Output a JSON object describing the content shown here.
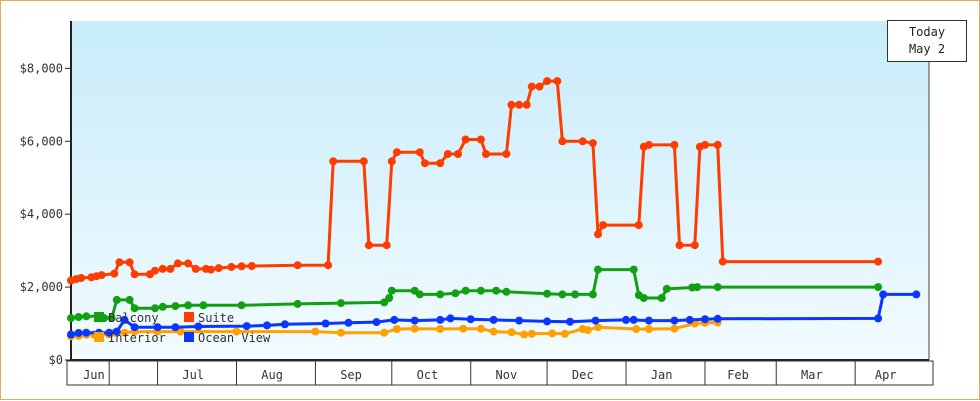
{
  "chart_data": {
    "type": "line",
    "title": "",
    "xlabel": "",
    "ylabel": "",
    "ylim": [
      0,
      9300
    ],
    "yticks": [
      {
        "value": 0,
        "label": "$0"
      },
      {
        "value": 2000,
        "label": "$2,000"
      },
      {
        "value": 4000,
        "label": "$4,000"
      },
      {
        "value": 6000,
        "label": "$6,000"
      },
      {
        "value": 8000,
        "label": "$8,000"
      }
    ],
    "xlim": [
      "2010-05-28",
      "2011-04-30"
    ],
    "month_labels": [
      {
        "label": "Jun",
        "date": "2010-06-06"
      },
      {
        "label": "Jul",
        "date": "2010-07-15"
      },
      {
        "label": "Aug",
        "date": "2010-08-15"
      },
      {
        "label": "Sep",
        "date": "2010-09-15"
      },
      {
        "label": "Oct",
        "date": "2010-10-15"
      },
      {
        "label": "Nov",
        "date": "2010-11-15"
      },
      {
        "label": "Dec",
        "date": "2010-12-15"
      },
      {
        "label": "Jan",
        "date": "2011-01-15"
      },
      {
        "label": "Feb",
        "date": "2011-02-14"
      },
      {
        "label": "Mar",
        "date": "2011-03-15"
      },
      {
        "label": "Apr",
        "date": "2011-04-13"
      }
    ],
    "month_dividers": [
      "2010-06-12",
      "2010-07-01",
      "2010-08-01",
      "2010-09-01",
      "2010-10-01",
      "2010-11-01",
      "2010-12-01",
      "2011-01-01",
      "2011-02-01",
      "2011-03-01",
      "2011-04-01"
    ],
    "legend_position": "bottom-left",
    "colors": {
      "plot_bg_top": "#c8ecfa",
      "plot_bg_bottom": "#f2fbff"
    },
    "series": [
      {
        "name": "Suite",
        "color": "#ff3c00",
        "points": [
          [
            "2010-05-28",
            2180
          ],
          [
            "2010-05-30",
            2220
          ],
          [
            "2010-06-01",
            2250
          ],
          [
            "2010-06-05",
            2270
          ],
          [
            "2010-06-07",
            2300
          ],
          [
            "2010-06-09",
            2330
          ],
          [
            "2010-06-14",
            2370
          ],
          [
            "2010-06-16",
            2680
          ],
          [
            "2010-06-20",
            2680
          ],
          [
            "2010-06-22",
            2350
          ],
          [
            "2010-06-28",
            2350
          ],
          [
            "2010-06-30",
            2450
          ],
          [
            "2010-07-03",
            2500
          ],
          [
            "2010-07-06",
            2500
          ],
          [
            "2010-07-09",
            2650
          ],
          [
            "2010-07-13",
            2650
          ],
          [
            "2010-07-16",
            2500
          ],
          [
            "2010-07-20",
            2500
          ],
          [
            "2010-07-22",
            2480
          ],
          [
            "2010-07-25",
            2520
          ],
          [
            "2010-07-30",
            2550
          ],
          [
            "2010-08-03",
            2570
          ],
          [
            "2010-08-07",
            2580
          ],
          [
            "2010-08-25",
            2600
          ],
          [
            "2010-09-06",
            2600
          ],
          [
            "2010-09-08",
            5450
          ],
          [
            "2010-09-20",
            5450
          ],
          [
            "2010-09-22",
            3150
          ],
          [
            "2010-09-29",
            3150
          ],
          [
            "2010-10-01",
            5450
          ],
          [
            "2010-10-03",
            5700
          ],
          [
            "2010-10-12",
            5700
          ],
          [
            "2010-10-14",
            5400
          ],
          [
            "2010-10-20",
            5400
          ],
          [
            "2010-10-23",
            5650
          ],
          [
            "2010-10-27",
            5650
          ],
          [
            "2010-10-30",
            6050
          ],
          [
            "2010-11-05",
            6050
          ],
          [
            "2010-11-07",
            5650
          ],
          [
            "2010-11-15",
            5650
          ],
          [
            "2010-11-17",
            7000
          ],
          [
            "2010-11-20",
            7000
          ],
          [
            "2010-11-23",
            7000
          ],
          [
            "2010-11-25",
            7500
          ],
          [
            "2010-11-28",
            7500
          ],
          [
            "2010-12-01",
            7650
          ],
          [
            "2010-12-05",
            7650
          ],
          [
            "2010-12-07",
            6000
          ],
          [
            "2010-12-15",
            6000
          ],
          [
            "2010-12-19",
            5950
          ],
          [
            "2010-12-21",
            3450
          ],
          [
            "2010-12-23",
            3700
          ],
          [
            "2011-01-06",
            3700
          ],
          [
            "2011-01-08",
            5850
          ],
          [
            "2011-01-10",
            5900
          ],
          [
            "2011-01-20",
            5900
          ],
          [
            "2011-01-22",
            3150
          ],
          [
            "2011-01-28",
            3150
          ],
          [
            "2011-01-30",
            5850
          ],
          [
            "2011-02-01",
            5900
          ],
          [
            "2011-02-06",
            5900
          ],
          [
            "2011-02-08",
            2700
          ],
          [
            "2011-04-10",
            2700
          ]
        ]
      },
      {
        "name": "Balcony",
        "color": "#12a012",
        "points": [
          [
            "2010-05-28",
            1150
          ],
          [
            "2010-05-31",
            1180
          ],
          [
            "2010-06-03",
            1200
          ],
          [
            "2010-06-08",
            1200
          ],
          [
            "2010-06-10",
            1150
          ],
          [
            "2010-06-13",
            1150
          ],
          [
            "2010-06-15",
            1650
          ],
          [
            "2010-06-20",
            1650
          ],
          [
            "2010-06-22",
            1420
          ],
          [
            "2010-06-30",
            1420
          ],
          [
            "2010-07-03",
            1460
          ],
          [
            "2010-07-08",
            1480
          ],
          [
            "2010-07-13",
            1500
          ],
          [
            "2010-07-19",
            1500
          ],
          [
            "2010-08-03",
            1500
          ],
          [
            "2010-08-25",
            1540
          ],
          [
            "2010-09-11",
            1560
          ],
          [
            "2010-09-28",
            1580
          ],
          [
            "2010-09-30",
            1700
          ],
          [
            "2010-10-01",
            1900
          ],
          [
            "2010-10-10",
            1900
          ],
          [
            "2010-10-12",
            1800
          ],
          [
            "2010-10-20",
            1800
          ],
          [
            "2010-10-26",
            1830
          ],
          [
            "2010-10-30",
            1900
          ],
          [
            "2010-11-05",
            1900
          ],
          [
            "2010-11-11",
            1900
          ],
          [
            "2010-11-15",
            1870
          ],
          [
            "2010-12-01",
            1820
          ],
          [
            "2010-12-07",
            1800
          ],
          [
            "2010-12-12",
            1800
          ],
          [
            "2010-12-19",
            1800
          ],
          [
            "2010-12-21",
            2480
          ],
          [
            "2011-01-04",
            2480
          ],
          [
            "2011-01-06",
            1780
          ],
          [
            "2011-01-08",
            1700
          ],
          [
            "2011-01-15",
            1700
          ],
          [
            "2011-01-17",
            1950
          ],
          [
            "2011-01-27",
            1990
          ],
          [
            "2011-01-29",
            2000
          ],
          [
            "2011-02-06",
            2000
          ],
          [
            "2011-04-10",
            2000
          ]
        ]
      },
      {
        "name": "Interior",
        "color": "#ffa000",
        "points": [
          [
            "2010-05-28",
            650
          ],
          [
            "2010-05-31",
            660
          ],
          [
            "2010-06-03",
            690
          ],
          [
            "2010-06-06",
            700
          ],
          [
            "2010-06-12",
            700
          ],
          [
            "2010-06-14",
            750
          ],
          [
            "2010-06-18",
            750
          ],
          [
            "2010-06-22",
            780
          ],
          [
            "2010-07-01",
            780
          ],
          [
            "2010-07-10",
            780
          ],
          [
            "2010-08-01",
            780
          ],
          [
            "2010-09-01",
            780
          ],
          [
            "2010-09-11",
            750
          ],
          [
            "2010-09-28",
            750
          ],
          [
            "2010-10-03",
            850
          ],
          [
            "2010-10-10",
            860
          ],
          [
            "2010-10-20",
            850
          ],
          [
            "2010-10-29",
            860
          ],
          [
            "2010-11-05",
            860
          ],
          [
            "2010-11-10",
            780
          ],
          [
            "2010-11-17",
            760
          ],
          [
            "2010-11-22",
            700
          ],
          [
            "2010-11-25",
            720
          ],
          [
            "2010-12-03",
            730
          ],
          [
            "2010-12-08",
            720
          ],
          [
            "2010-12-15",
            850
          ],
          [
            "2010-12-17",
            820
          ],
          [
            "2010-12-21",
            900
          ],
          [
            "2011-01-05",
            850
          ],
          [
            "2011-01-10",
            850
          ],
          [
            "2011-01-20",
            860
          ],
          [
            "2011-01-28",
            1000
          ],
          [
            "2011-02-01",
            1020
          ],
          [
            "2011-02-06",
            1030
          ]
        ]
      },
      {
        "name": "Ocean View",
        "color": "#0a36ff",
        "points": [
          [
            "2010-05-28",
            700
          ],
          [
            "2010-05-31",
            740
          ],
          [
            "2010-06-03",
            750
          ],
          [
            "2010-06-08",
            750
          ],
          [
            "2010-06-12",
            750
          ],
          [
            "2010-06-15",
            780
          ],
          [
            "2010-06-18",
            1100
          ],
          [
            "2010-06-22",
            900
          ],
          [
            "2010-07-01",
            900
          ],
          [
            "2010-07-08",
            900
          ],
          [
            "2010-07-17",
            920
          ],
          [
            "2010-08-05",
            930
          ],
          [
            "2010-08-13",
            950
          ],
          [
            "2010-08-20",
            980
          ],
          [
            "2010-09-05",
            1000
          ],
          [
            "2010-09-14",
            1020
          ],
          [
            "2010-09-25",
            1040
          ],
          [
            "2010-10-02",
            1100
          ],
          [
            "2010-10-10",
            1080
          ],
          [
            "2010-10-20",
            1100
          ],
          [
            "2010-10-24",
            1140
          ],
          [
            "2010-11-01",
            1120
          ],
          [
            "2010-11-10",
            1100
          ],
          [
            "2010-11-20",
            1080
          ],
          [
            "2010-12-01",
            1060
          ],
          [
            "2010-12-10",
            1050
          ],
          [
            "2010-12-20",
            1080
          ],
          [
            "2011-01-01",
            1100
          ],
          [
            "2011-01-04",
            1100
          ],
          [
            "2011-01-10",
            1080
          ],
          [
            "2011-01-20",
            1080
          ],
          [
            "2011-01-26",
            1100
          ],
          [
            "2011-02-01",
            1120
          ],
          [
            "2011-02-06",
            1130
          ],
          [
            "2011-04-10",
            1140
          ],
          [
            "2011-04-12",
            1800
          ],
          [
            "2011-04-25",
            1800
          ]
        ]
      }
    ]
  },
  "today": {
    "line1": "Today",
    "line2": "May 2"
  }
}
